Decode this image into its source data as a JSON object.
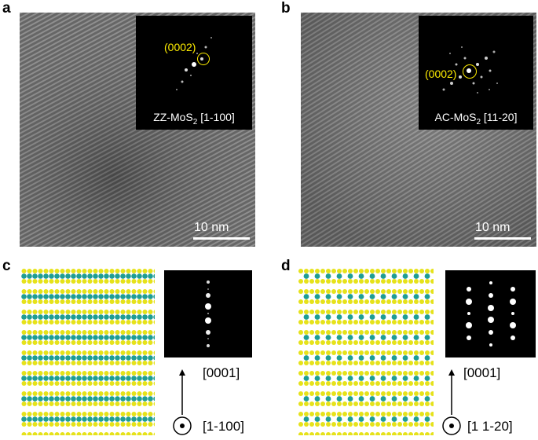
{
  "panels": {
    "a": {
      "label": "a",
      "inset_caption_main": "ZZ-MoS",
      "inset_caption_sub": "2",
      "inset_caption_dir": " [1-100]",
      "reflection": "(0002)",
      "scale_bar": "10 nm"
    },
    "b": {
      "label": "b",
      "inset_caption_main": "AC-MoS",
      "inset_caption_sub": "2",
      "inset_caption_dir": " [11-20]",
      "reflection": "(0002)",
      "scale_bar": "10 nm"
    },
    "c": {
      "label": "c",
      "axis_up": "[0001]",
      "axis_out": "[1-100]"
    },
    "d": {
      "label": "d",
      "axis_up": "[0001]",
      "axis_out": "[1 1-20]"
    }
  },
  "colors": {
    "sulfur": "#e6e21a",
    "molybdenum": "#1f9d95",
    "highlight": "#ffee00"
  }
}
